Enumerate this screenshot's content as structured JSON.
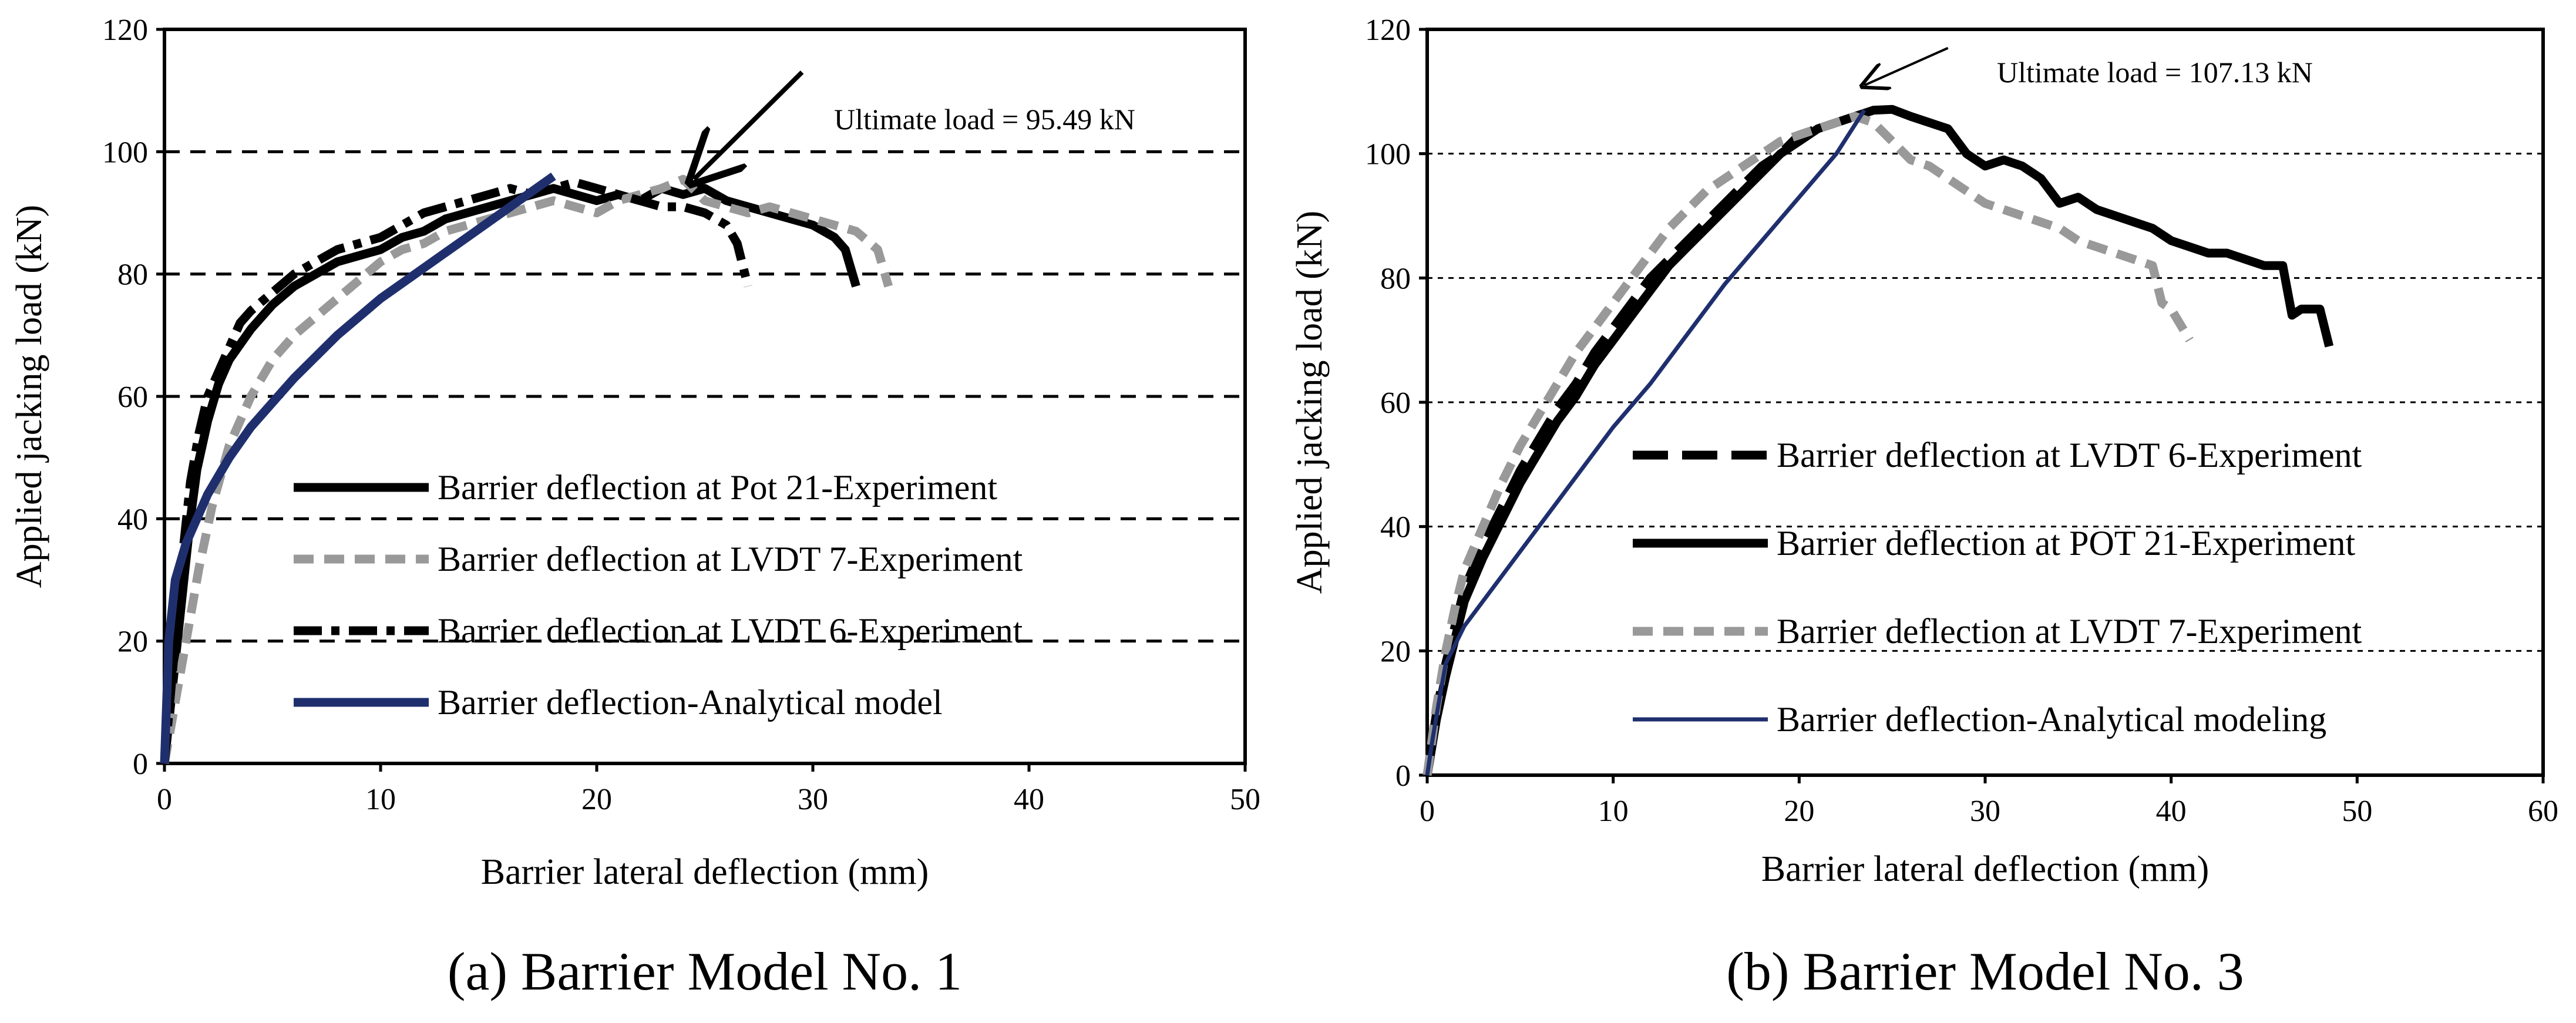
{
  "colors": {
    "black": "#000000",
    "gray": "#999999",
    "navy": "#1f2f6e"
  },
  "chart_data": [
    {
      "type": "line",
      "caption": "(a) Barrier Model No. 1",
      "xlabel": "Barrier lateral deflection (mm)",
      "ylabel": "Applied jacking load (kN)",
      "xlim": [
        0,
        50
      ],
      "ylim": [
        0,
        120
      ],
      "xticks": [
        0,
        10,
        20,
        30,
        40,
        50
      ],
      "yticks": [
        0,
        20,
        40,
        60,
        80,
        100,
        120
      ],
      "grid": "horizontal-dashed",
      "legend_position": "lower-center",
      "annotation": {
        "text": "Ultimate load = 95.49 kN",
        "point": [
          24.5,
          95.5
        ],
        "arrow_from": [
          29.5,
          113
        ]
      },
      "series": [
        {
          "name": "Barrier deflection at Pot 21-Experiment",
          "style": "solid-thick",
          "color": "#000000",
          "x": [
            0,
            0.3,
            0.6,
            0.9,
            1.2,
            1.5,
            2,
            2.5,
            3,
            4,
            5,
            6,
            7,
            8,
            9,
            10,
            11,
            12,
            13,
            14,
            15,
            16,
            17,
            18,
            19,
            20,
            21,
            22,
            23,
            24,
            25,
            26,
            27,
            28,
            29,
            30,
            31,
            31.5,
            32
          ],
          "y": [
            0,
            10,
            20,
            30,
            40,
            48,
            56,
            62,
            66,
            71,
            75,
            78,
            80,
            82,
            83,
            84,
            86,
            87,
            89,
            90,
            91,
            92,
            93,
            94,
            93,
            92,
            93,
            92,
            94,
            93,
            94,
            92,
            91,
            90,
            89,
            88,
            86,
            84,
            78
          ]
        },
        {
          "name": "Barrier deflection at LVDT 7-Experiment",
          "style": "dashed-thick",
          "color": "#999999",
          "x": [
            0,
            0.4,
            0.8,
            1.2,
            1.6,
            2.2,
            3,
            4,
            5,
            6,
            7,
            8,
            9,
            10,
            11,
            12,
            13,
            14,
            15,
            16,
            17,
            18,
            19,
            20,
            21,
            22,
            23,
            24,
            25,
            26,
            27,
            28,
            29,
            30,
            31,
            32,
            33,
            33.5
          ],
          "y": [
            0,
            8,
            16,
            24,
            32,
            42,
            52,
            60,
            66,
            70,
            73,
            76,
            79,
            82,
            84,
            85,
            87,
            88,
            89,
            90,
            91,
            92,
            91,
            90,
            92,
            93,
            94,
            95.5,
            92,
            91,
            90,
            91,
            90,
            89,
            88,
            87,
            84,
            78
          ]
        },
        {
          "name": "Barrier deflection at LVDT 6-Experiment",
          "style": "dashdot-thick",
          "color": "#000000",
          "x": [
            0,
            0.3,
            0.6,
            0.9,
            1.2,
            1.6,
            2,
            2.5,
            3,
            3.5,
            4,
            5,
            6,
            7,
            8,
            9,
            10,
            11,
            12,
            13,
            14,
            15,
            16,
            17,
            18,
            19,
            20,
            21,
            22,
            23,
            24,
            25,
            26,
            26.5,
            27
          ],
          "y": [
            0,
            12,
            24,
            36,
            46,
            54,
            60,
            64,
            68,
            72,
            74,
            77,
            80,
            82,
            84,
            85,
            86,
            88,
            90,
            91,
            92,
            93,
            94,
            93,
            94,
            95,
            94,
            93,
            92,
            91,
            91,
            90,
            88,
            85,
            78
          ]
        },
        {
          "name": "Barrier deflection-Analytical model",
          "style": "solid-thick",
          "color": "#1f2f6e",
          "x": [
            0,
            0.2,
            0.5,
            1,
            1.5,
            2,
            3,
            4,
            5,
            6,
            8,
            10,
            12,
            14,
            16,
            18
          ],
          "y": [
            0,
            20,
            30,
            36,
            40,
            44,
            50,
            55,
            59,
            63,
            70,
            76,
            81,
            86,
            91,
            96
          ]
        }
      ]
    },
    {
      "type": "line",
      "caption": "(b) Barrier Model No. 3",
      "xlabel": "Barrier lateral deflection (mm)",
      "ylabel": "Applied jacking load (kN)",
      "xlim": [
        0,
        60
      ],
      "ylim": [
        0,
        120
      ],
      "xticks": [
        0,
        10,
        20,
        30,
        40,
        50,
        60
      ],
      "yticks": [
        0,
        20,
        40,
        60,
        80,
        100,
        120
      ],
      "grid": "horizontal-dotted",
      "legend_position": "lower-center",
      "annotation": {
        "text": "Ultimate load = 107.13 kN",
        "point": [
          23.5,
          111
        ],
        "arrow_from": [
          28,
          117
        ]
      },
      "series": [
        {
          "name": "Barrier deflection at LVDT 6-Experiment",
          "style": "longdash-thick",
          "color": "#000000",
          "x": [
            0,
            0.5,
            1,
            1.5,
            2,
            3,
            4,
            5,
            6,
            7,
            8,
            9,
            10,
            11,
            12,
            13,
            14,
            15,
            16,
            17,
            18,
            19,
            20,
            21,
            22,
            23
          ],
          "y": [
            0,
            10,
            18,
            24,
            30,
            37,
            43,
            49,
            54,
            59,
            63,
            68,
            72,
            76,
            80,
            83,
            86,
            89,
            92,
            95,
            98,
            100,
            103,
            104,
            105,
            106
          ]
        },
        {
          "name": "Barrier deflection at POT 21-Experiment",
          "style": "solid-thick",
          "color": "#000000",
          "x": [
            0,
            0.5,
            1,
            1.5,
            2,
            3,
            4,
            5,
            6,
            7,
            8,
            9,
            10,
            11,
            12,
            13,
            14,
            15,
            16,
            17,
            18,
            19,
            20,
            21,
            22,
            23,
            24,
            25,
            26,
            27,
            28,
            29,
            30,
            31,
            32,
            33,
            34,
            35,
            36,
            37,
            38,
            39,
            40,
            41,
            42,
            43,
            44,
            45,
            46,
            46.5,
            47,
            48,
            48.5
          ],
          "y": [
            0,
            9,
            16,
            22,
            28,
            35,
            41,
            47,
            52,
            57,
            61,
            66,
            70,
            74,
            78,
            82,
            85,
            88,
            91,
            94,
            97,
            100,
            102,
            104,
            105,
            106,
            107,
            107.13,
            106,
            105,
            104,
            100,
            98,
            99,
            98,
            96,
            92,
            93,
            91,
            90,
            89,
            88,
            86,
            85,
            84,
            84,
            83,
            82,
            82,
            74,
            75,
            75,
            69
          ]
        },
        {
          "name": "Barrier deflection at LVDT 7-Experiment",
          "style": "dashed-thick",
          "color": "#999999",
          "x": [
            0,
            0.5,
            1,
            1.5,
            2,
            3,
            4,
            5,
            6,
            7,
            8,
            9,
            10,
            11,
            12,
            13,
            14,
            15,
            16,
            17,
            18,
            19,
            20,
            21,
            22,
            23,
            24,
            25,
            26,
            27,
            28,
            29,
            30,
            31,
            32,
            33,
            34,
            35,
            36,
            37,
            38,
            39,
            39.5,
            40,
            41
          ],
          "y": [
            0,
            11,
            20,
            27,
            33,
            40,
            47,
            53,
            58,
            63,
            68,
            72,
            76,
            80,
            84,
            88,
            91,
            94,
            96,
            98,
            100,
            102,
            103,
            104,
            105,
            106,
            105,
            102,
            99,
            98,
            96,
            94,
            92,
            91,
            90,
            89,
            88,
            86,
            85,
            84,
            83,
            82,
            76,
            75,
            70
          ]
        },
        {
          "name": "Barrier deflection-Analytical modeling",
          "style": "solid-thin",
          "color": "#1f2f6e",
          "x": [
            0,
            0.3,
            0.7,
            1,
            1.5,
            2,
            3,
            4,
            6,
            8,
            10,
            12,
            14,
            16,
            18,
            20,
            22,
            23.5
          ],
          "y": [
            0,
            6,
            13,
            18,
            21,
            24,
            28,
            32,
            40,
            48,
            56,
            63,
            71,
            79,
            86,
            93,
            100,
            107
          ]
        }
      ]
    }
  ]
}
